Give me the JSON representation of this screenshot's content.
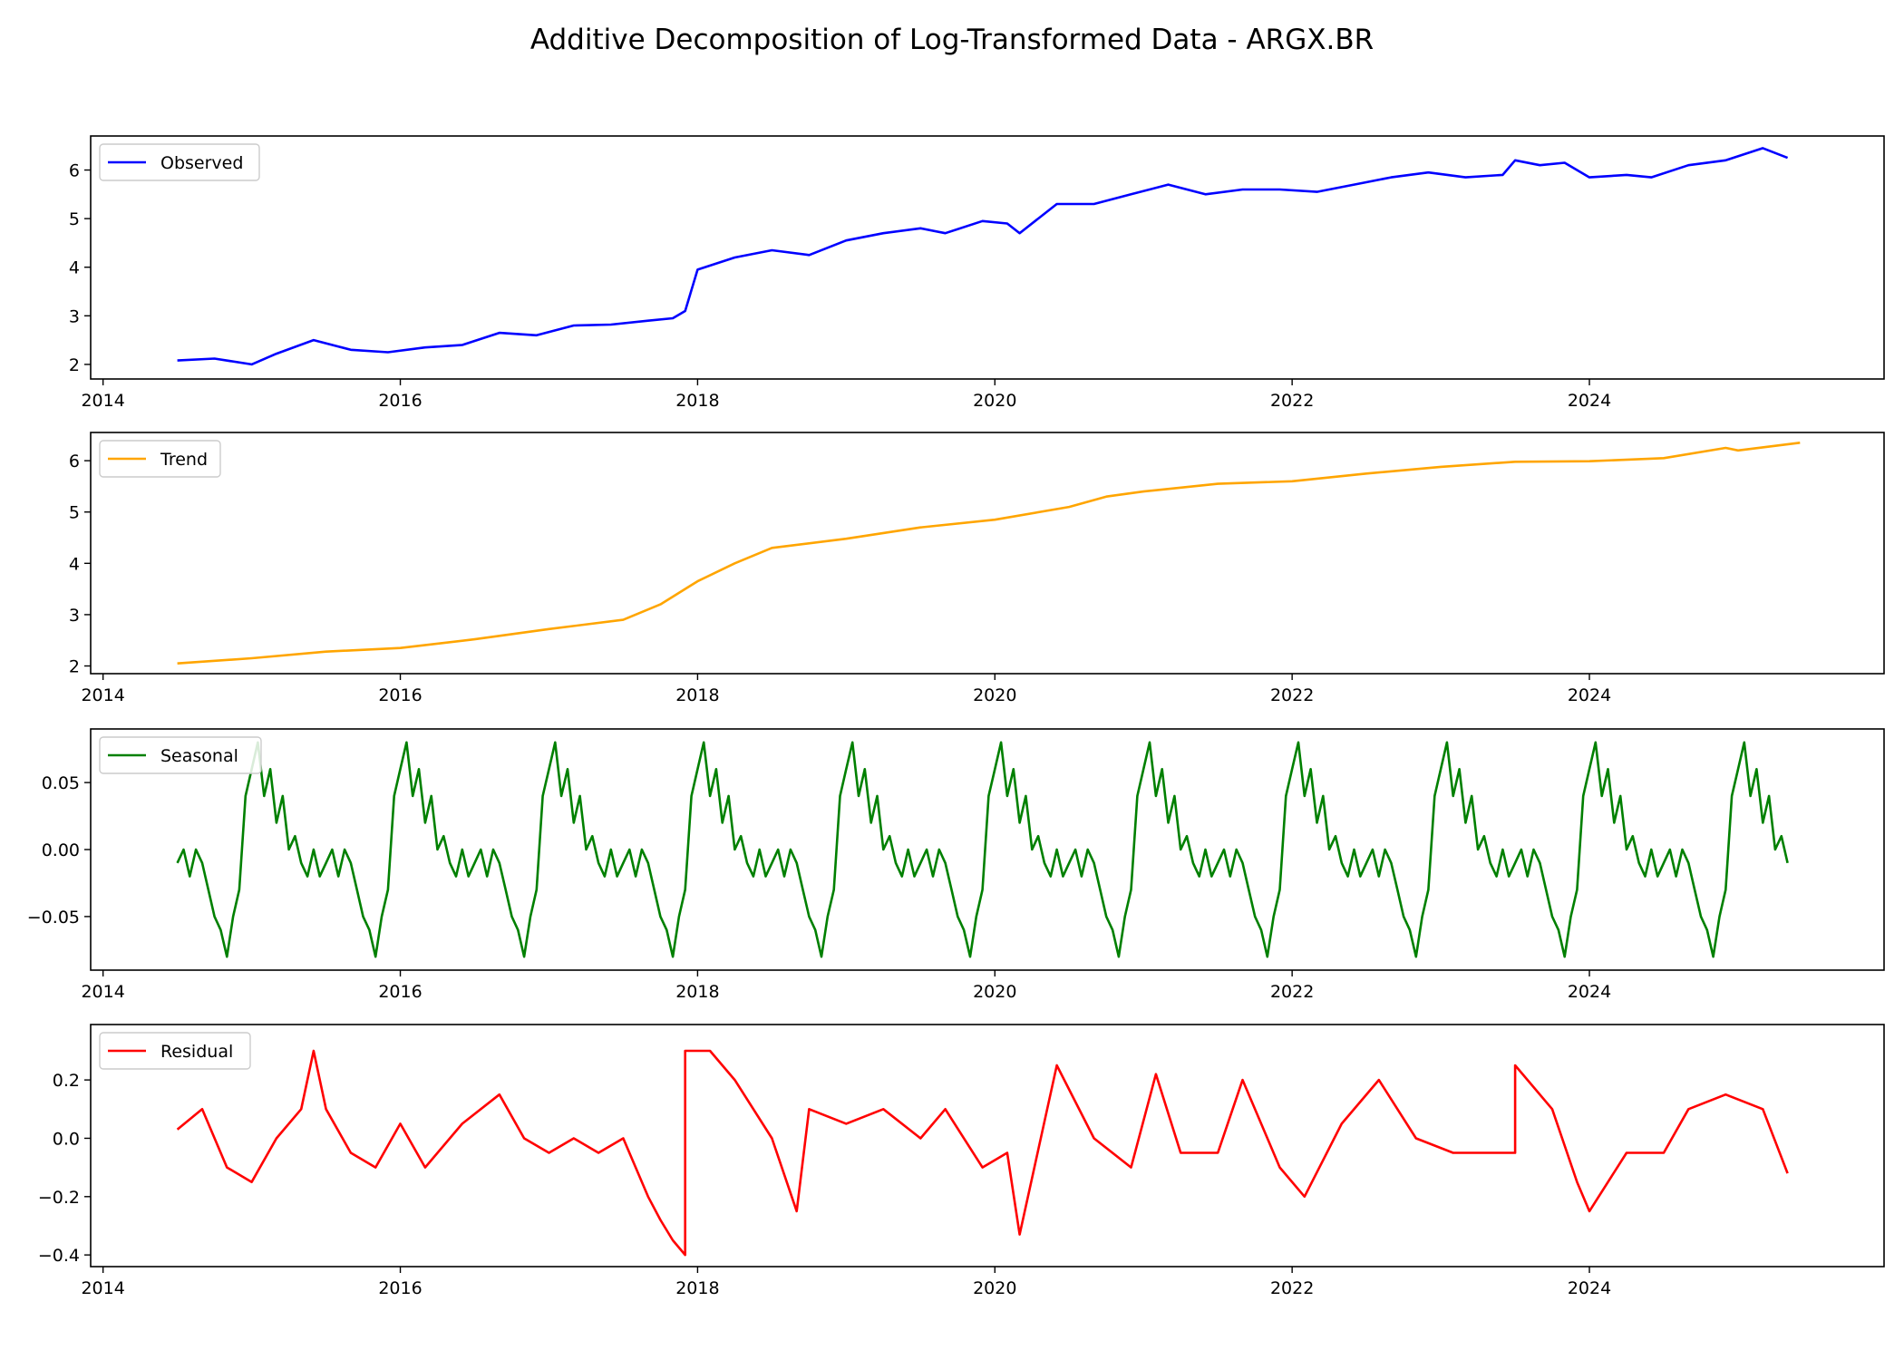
{
  "chart_data": {
    "type": "line",
    "title": "Additive Decomposition of Log-Transformed Data - ARGX.BR",
    "xlim": [
      "2013-12-01",
      "2025-12-25"
    ],
    "x_ticks": [
      "2014",
      "2016",
      "2018",
      "2020",
      "2022",
      "2024"
    ],
    "grid": false,
    "panels": [
      {
        "name": "Observed",
        "color": "#0000ff",
        "legend": "top-left",
        "ylim": [
          1.7,
          6.7
        ],
        "y_ticks": [
          "2",
          "3",
          "4",
          "5",
          "6"
        ],
        "y_tick_values": [
          2,
          3,
          4,
          5,
          6
        ],
        "x": [
          "2014-07",
          "2014-10",
          "2015-01",
          "2015-03",
          "2015-06",
          "2015-09",
          "2015-12",
          "2016-03",
          "2016-06",
          "2016-09",
          "2016-12",
          "2017-03",
          "2017-06",
          "2017-09",
          "2017-11",
          "2017-12",
          "2018-01",
          "2018-04",
          "2018-07",
          "2018-10",
          "2019-01",
          "2019-04",
          "2019-07",
          "2019-09",
          "2019-12",
          "2020-02",
          "2020-03",
          "2020-06",
          "2020-09",
          "2020-12",
          "2021-03",
          "2021-06",
          "2021-09",
          "2021-12",
          "2022-03",
          "2022-06",
          "2022-09",
          "2022-12",
          "2023-03",
          "2023-06",
          "2023-07",
          "2023-09",
          "2023-11",
          "2024-01",
          "2024-04",
          "2024-06",
          "2024-09",
          "2024-12",
          "2025-03",
          "2025-05"
        ],
        "values": [
          2.08,
          2.12,
          2.0,
          2.22,
          2.5,
          2.3,
          2.25,
          2.35,
          2.4,
          2.65,
          2.6,
          2.8,
          2.82,
          2.9,
          2.95,
          3.1,
          3.95,
          4.2,
          4.35,
          4.25,
          4.55,
          4.7,
          4.8,
          4.7,
          4.95,
          4.9,
          4.7,
          5.3,
          5.3,
          5.5,
          5.7,
          5.5,
          5.6,
          5.6,
          5.55,
          5.7,
          5.85,
          5.95,
          5.85,
          5.9,
          6.2,
          6.1,
          6.15,
          5.85,
          5.9,
          5.85,
          6.1,
          6.2,
          6.45,
          6.25
        ]
      },
      {
        "name": "Trend",
        "color": "#ffa500",
        "legend": "top-left",
        "ylim": [
          1.85,
          6.55
        ],
        "y_ticks": [
          "2",
          "3",
          "4",
          "5",
          "6"
        ],
        "y_tick_values": [
          2,
          3,
          4,
          5,
          6
        ],
        "x": [
          "2014-07",
          "2015-01",
          "2015-07",
          "2016-01",
          "2016-07",
          "2017-01",
          "2017-07",
          "2017-10",
          "2018-01",
          "2018-04",
          "2018-07",
          "2019-01",
          "2019-07",
          "2020-01",
          "2020-07",
          "2020-10",
          "2021-01",
          "2021-07",
          "2022-01",
          "2022-07",
          "2023-01",
          "2023-07",
          "2024-01",
          "2024-07",
          "2024-12",
          "2025-01",
          "2025-06"
        ],
        "values": [
          2.05,
          2.15,
          2.28,
          2.35,
          2.52,
          2.72,
          2.9,
          3.2,
          3.65,
          4.0,
          4.3,
          4.48,
          4.7,
          4.85,
          5.1,
          5.3,
          5.4,
          5.55,
          5.6,
          5.75,
          5.88,
          5.98,
          5.99,
          6.05,
          6.25,
          6.2,
          6.35
        ]
      },
      {
        "name": "Seasonal",
        "color": "#008000",
        "legend": "top-left",
        "ylim": [
          -0.09,
          0.09
        ],
        "y_ticks": [
          "−0.05",
          "0.00",
          "0.05"
        ],
        "y_tick_values": [
          -0.05,
          0.0,
          0.05
        ],
        "period_start": "2014-07",
        "period_months": 12,
        "x_months": [
          0,
          0.5,
          1,
          1.5,
          2,
          2.5,
          3,
          3.5,
          4,
          4.5,
          5,
          5.5,
          6,
          6.5,
          7,
          7.5,
          8,
          8.5,
          9,
          9.5,
          10,
          10.5,
          11,
          11.5,
          12
        ],
        "values": [
          -0.01,
          0.0,
          -0.02,
          0.0,
          -0.01,
          -0.03,
          -0.05,
          -0.06,
          -0.08,
          -0.05,
          -0.03,
          0.04,
          0.06,
          0.08,
          0.04,
          0.06,
          0.02,
          0.04,
          0.0,
          0.01,
          -0.01,
          -0.02,
          0.0,
          -0.02,
          -0.01
        ]
      },
      {
        "name": "Residual",
        "color": "#ff0000",
        "legend": "top-left",
        "ylim": [
          -0.44,
          0.39
        ],
        "y_ticks": [
          "−0.4",
          "−0.2",
          "0.0",
          "0.2"
        ],
        "y_tick_values": [
          -0.4,
          -0.2,
          0.0,
          0.2
        ],
        "x": [
          "2014-07",
          "2014-09",
          "2014-11",
          "2015-01",
          "2015-03",
          "2015-05",
          "2015-06",
          "2015-07",
          "2015-09",
          "2015-11",
          "2016-01",
          "2016-03",
          "2016-06",
          "2016-09",
          "2016-11",
          "2017-01",
          "2017-03",
          "2017-05",
          "2017-07",
          "2017-09",
          "2017-10",
          "2017-11",
          "2017-12",
          "2017-12",
          "2018-02",
          "2018-04",
          "2018-07",
          "2018-09",
          "2018-10",
          "2019-01",
          "2019-04",
          "2019-07",
          "2019-09",
          "2019-12",
          "2020-02",
          "2020-03",
          "2020-06",
          "2020-09",
          "2020-12",
          "2021-02",
          "2021-04",
          "2021-07",
          "2021-09",
          "2021-12",
          "2022-02",
          "2022-05",
          "2022-08",
          "2022-11",
          "2023-02",
          "2023-05",
          "2023-07",
          "2023-07",
          "2023-10",
          "2023-12",
          "2024-01",
          "2024-04",
          "2024-07",
          "2024-09",
          "2024-12",
          "2025-03",
          "2025-05"
        ],
        "values": [
          0.03,
          0.1,
          -0.1,
          -0.15,
          0.0,
          0.1,
          0.3,
          0.1,
          -0.05,
          -0.1,
          0.05,
          -0.1,
          0.05,
          0.15,
          0.0,
          -0.05,
          0.0,
          -0.05,
          0.0,
          -0.2,
          -0.28,
          -0.35,
          -0.4,
          0.3,
          0.3,
          0.2,
          0.0,
          -0.25,
          0.1,
          0.05,
          0.1,
          0.0,
          0.1,
          -0.1,
          -0.05,
          -0.33,
          0.25,
          0.0,
          -0.1,
          0.22,
          -0.05,
          -0.05,
          0.2,
          -0.1,
          -0.2,
          0.05,
          0.2,
          0.0,
          -0.05,
          -0.05,
          -0.05,
          0.25,
          0.1,
          -0.15,
          -0.25,
          -0.05,
          -0.05,
          0.1,
          0.15,
          0.1,
          -0.12
        ]
      }
    ]
  }
}
